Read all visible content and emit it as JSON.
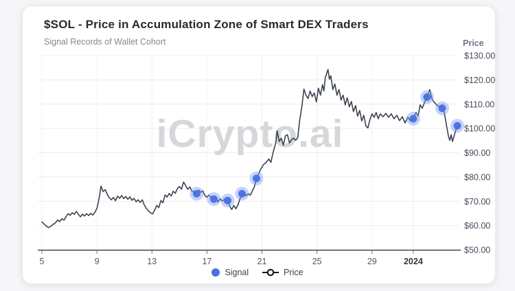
{
  "header": {
    "title": "$SOL - Price in Accumulation Zone of Smart DEX Traders",
    "subtitle": "Signal Records of Wallet Cohort"
  },
  "watermark": "iCrypto.ai",
  "legend": {
    "signal": "Signal",
    "price": "Price"
  },
  "colors": {
    "line": "#3a4250",
    "signal_dot": "#4a70e2",
    "signal_halo": "#7d9df0",
    "grid_h": "#ececee",
    "grid_v": "#f1f1f3",
    "axis_line": "#3d424c",
    "x_tick_label": "#53575f",
    "x_tick_label_bold": "#34383f",
    "y_tick_label": "#434b59",
    "watermark": "#d6d7da"
  },
  "chart_data": {
    "type": "line",
    "title": "$SOL - Price in Accumulation Zone of Smart DEX Traders",
    "subtitle": "Signal Records of Wallet Cohort",
    "grid": true,
    "legend_position": "bottom",
    "x_axis": {
      "label": "",
      "tick_values": [
        5,
        9,
        13,
        17,
        21,
        25,
        29,
        32
      ],
      "tick_labels": [
        "5",
        "9",
        "13",
        "17",
        "21",
        "25",
        "29",
        "2024"
      ],
      "bold_tick_index": 7,
      "range": [
        5,
        35.3
      ]
    },
    "y_axis": {
      "title": "Price",
      "tick_values": [
        50,
        60,
        70,
        80,
        90,
        100,
        110,
        120,
        130
      ],
      "tick_labels": [
        "$50.00",
        "$60.00",
        "$70.00",
        "$80.00",
        "$90.00",
        "$100.00",
        "$110.00",
        "$120.00",
        "$130.00"
      ],
      "range": [
        50,
        130
      ]
    },
    "series": [
      {
        "name": "Price",
        "type": "line",
        "color": "#3a4250",
        "x": [
          5,
          5.2,
          5.35,
          5.5,
          5.65,
          5.8,
          6,
          6.15,
          6.3,
          6.45,
          6.6,
          6.75,
          6.9,
          7.05,
          7.2,
          7.35,
          7.5,
          7.65,
          7.8,
          7.95,
          8.1,
          8.25,
          8.4,
          8.55,
          8.7,
          8.85,
          9,
          9.1,
          9.2,
          9.3,
          9.45,
          9.6,
          9.75,
          9.9,
          10.05,
          10.2,
          10.35,
          10.5,
          10.65,
          10.8,
          10.95,
          11.1,
          11.25,
          11.4,
          11.55,
          11.7,
          11.85,
          12,
          12.15,
          12.3,
          12.45,
          12.6,
          12.75,
          12.9,
          13.05,
          13.2,
          13.35,
          13.5,
          13.65,
          13.8,
          13.95,
          14.1,
          14.25,
          14.4,
          14.55,
          14.7,
          14.85,
          15,
          15.15,
          15.3,
          15.45,
          15.6,
          15.75,
          15.9,
          16.05,
          16.25,
          16.4,
          16.55,
          16.7,
          16.85,
          17,
          17.15,
          17.3,
          17.5,
          17.65,
          17.8,
          17.95,
          18.1,
          18.3,
          18.5,
          18.65,
          18.8,
          18.95,
          19.1,
          19.25,
          19.4,
          19.55,
          19.7,
          19.85,
          20,
          20.15,
          20.3,
          20.45,
          20.6,
          20.75,
          20.9,
          21.1,
          21.3,
          21.5,
          21.65,
          21.8,
          22,
          22.1,
          22.25,
          22.4,
          22.55,
          22.7,
          22.85,
          23,
          23.15,
          23.3,
          23.45,
          23.6,
          23.75,
          23.9,
          24.05,
          24.2,
          24.35,
          24.5,
          24.65,
          24.8,
          24.95,
          25.1,
          25.25,
          25.4,
          25.5,
          25.6,
          25.7,
          25.8,
          25.9,
          26,
          26.15,
          26.3,
          26.45,
          26.6,
          26.75,
          26.9,
          27.05,
          27.2,
          27.35,
          27.5,
          27.65,
          27.8,
          27.95,
          28.1,
          28.25,
          28.4,
          28.55,
          28.7,
          28.85,
          29,
          29.15,
          29.3,
          29.45,
          29.6,
          29.8,
          30,
          30.2,
          30.4,
          30.6,
          30.8,
          31,
          31.2,
          31.4,
          31.6,
          31.8,
          32,
          32.2,
          32.35,
          32.5,
          32.65,
          32.8,
          33,
          33.1,
          33.2,
          33.35,
          33.5,
          33.7,
          33.9,
          34.1,
          34.25,
          34.4,
          34.55,
          34.65,
          34.75,
          34.85,
          34.95,
          35.1,
          35.2,
          35.3
        ],
        "y": [
          61.5,
          60.4,
          59.6,
          59.2,
          59.7,
          60.4,
          61.2,
          62.3,
          61.6,
          62.8,
          62.2,
          63.6,
          64.9,
          64.2,
          65.3,
          64.6,
          65.8,
          64.6,
          63.6,
          64.7,
          63.9,
          64.9,
          64.1,
          65,
          64.3,
          65.4,
          67,
          69.5,
          72.5,
          76.2,
          74,
          74.8,
          72.8,
          71.4,
          70.6,
          71.6,
          70.2,
          72.1,
          71.2,
          72.4,
          71.1,
          72,
          70.8,
          71.8,
          70.4,
          71.2,
          69.8,
          70.6,
          69.5,
          70.6,
          68.4,
          67,
          66,
          65.2,
          64.8,
          66.4,
          68.3,
          67.4,
          70.3,
          69.4,
          72.6,
          71.7,
          73.2,
          72.2,
          74.1,
          73.3,
          75.2,
          76.1,
          75,
          77.9,
          76.5,
          74.9,
          75.9,
          74.2,
          73.8,
          73.1,
          74.6,
          73.7,
          74.3,
          72.3,
          71.7,
          72.6,
          71.5,
          70.9,
          71.7,
          69.7,
          71.1,
          70.1,
          70.9,
          70.3,
          68,
          66.6,
          68.3,
          66.9,
          68.5,
          71,
          73.1,
          74,
          72.3,
          73.1,
          72.5,
          74.2,
          76,
          79.4,
          81.1,
          83.1,
          85,
          86,
          87.4,
          86,
          90,
          94,
          99,
          94.6,
          96,
          93.1,
          96.9,
          97.4,
          94,
          95.4,
          96,
          95.1,
          96.2,
          103.7,
          108.9,
          116.2,
          113.7,
          112.3,
          115.4,
          113.1,
          114.6,
          110.9,
          116.6,
          113.7,
          118,
          115.4,
          120.9,
          122.6,
          124.3,
          120.3,
          121.7,
          116,
          118.3,
          113.7,
          116,
          111.7,
          113.7,
          109.7,
          112.6,
          108.9,
          111.1,
          106.9,
          109.4,
          105.1,
          107.4,
          103.1,
          105.4,
          101.1,
          100.2,
          103.7,
          106,
          104.6,
          106.6,
          104,
          106,
          104.8,
          106.2,
          104.6,
          106,
          104,
          105.4,
          103.2,
          104.8,
          102.3,
          104.6,
          103.1,
          104,
          106.6,
          105.1,
          109.7,
          108.3,
          110.5,
          112.9,
          114.6,
          116,
          112.3,
          110.9,
          109.7,
          108.8,
          108.3,
          106.6,
          101.7,
          96.9,
          95.1,
          97.4,
          94.6,
          96.6,
          99.5,
          101.1,
          100.3
        ]
      },
      {
        "name": "Signal",
        "type": "scatter",
        "color": "#4a70e2",
        "halo_color": "#7d9df0",
        "x": [
          16.25,
          17.5,
          18.5,
          19.55,
          20.6,
          32,
          33,
          34.1,
          35.2
        ],
        "y": [
          73.1,
          70.9,
          70.3,
          73.1,
          79.4,
          104,
          112.9,
          108.3,
          101.1
        ]
      }
    ]
  }
}
